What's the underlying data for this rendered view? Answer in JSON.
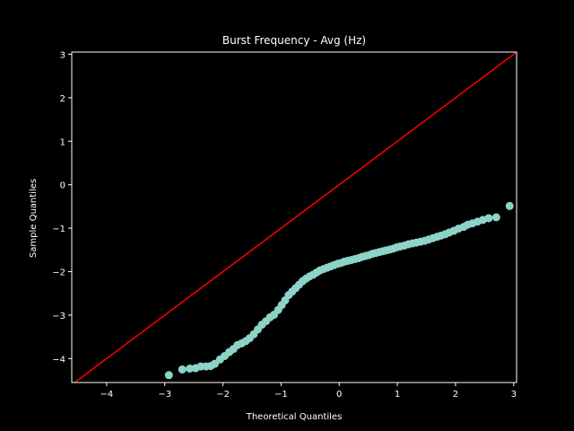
{
  "colors": {
    "background": "#000000",
    "foreground": "#ffffff",
    "points": "#8dd3c7",
    "reference_line": "#ff0000"
  },
  "chart_data": {
    "type": "scatter",
    "title": "Burst Frequency - Avg (Hz)",
    "xlabel": "Theoretical Quantiles",
    "ylabel": "Sample Quantiles",
    "xlim": [
      -4.6,
      3.05
    ],
    "ylim": [
      -4.55,
      3.05
    ],
    "xticks": [
      -4,
      -3,
      -2,
      -1,
      0,
      1,
      2,
      3
    ],
    "yticks": [
      -4,
      -3,
      -2,
      -1,
      0,
      1,
      2,
      3
    ],
    "grid": false,
    "reference_line": {
      "from": [
        -4.6,
        -4.6
      ],
      "to": [
        3.05,
        3.05
      ]
    },
    "series": [
      {
        "points": [
          [
            -2.93,
            -4.38
          ],
          [
            -2.7,
            -4.25
          ],
          [
            -2.57,
            -4.23
          ],
          [
            -2.47,
            -4.22
          ],
          [
            -2.38,
            -4.18
          ],
          [
            -2.29,
            -4.18
          ],
          [
            -2.21,
            -4.17
          ],
          [
            -2.14,
            -4.12
          ],
          [
            -2.05,
            -4.02
          ],
          [
            -1.97,
            -3.94
          ],
          [
            -1.89,
            -3.85
          ],
          [
            -1.82,
            -3.78
          ],
          [
            -1.75,
            -3.69
          ],
          [
            -1.68,
            -3.65
          ],
          [
            -1.61,
            -3.6
          ],
          [
            -1.54,
            -3.53
          ],
          [
            -1.47,
            -3.44
          ],
          [
            -1.4,
            -3.33
          ],
          [
            -1.33,
            -3.22
          ],
          [
            -1.26,
            -3.14
          ],
          [
            -1.19,
            -3.05
          ],
          [
            -1.12,
            -2.99
          ],
          [
            -1.05,
            -2.88
          ],
          [
            -0.99,
            -2.77
          ],
          [
            -0.93,
            -2.66
          ],
          [
            -0.87,
            -2.54
          ],
          [
            -0.81,
            -2.46
          ],
          [
            -0.75,
            -2.38
          ],
          [
            -0.69,
            -2.3
          ],
          [
            -0.63,
            -2.22
          ],
          [
            -0.57,
            -2.16
          ],
          [
            -0.51,
            -2.11
          ],
          [
            -0.45,
            -2.07
          ],
          [
            -0.39,
            -2.02
          ],
          [
            -0.33,
            -1.97
          ],
          [
            -0.27,
            -1.94
          ],
          [
            -0.21,
            -1.91
          ],
          [
            -0.15,
            -1.88
          ],
          [
            -0.09,
            -1.85
          ],
          [
            -0.03,
            -1.82
          ],
          [
            0.03,
            -1.8
          ],
          [
            0.09,
            -1.77
          ],
          [
            0.15,
            -1.75
          ],
          [
            0.21,
            -1.73
          ],
          [
            0.27,
            -1.71
          ],
          [
            0.33,
            -1.69
          ],
          [
            0.39,
            -1.66
          ],
          [
            0.45,
            -1.64
          ],
          [
            0.51,
            -1.62
          ],
          [
            0.57,
            -1.59
          ],
          [
            0.63,
            -1.57
          ],
          [
            0.69,
            -1.55
          ],
          [
            0.75,
            -1.53
          ],
          [
            0.81,
            -1.51
          ],
          [
            0.87,
            -1.49
          ],
          [
            0.93,
            -1.47
          ],
          [
            0.99,
            -1.44
          ],
          [
            1.05,
            -1.42
          ],
          [
            1.12,
            -1.4
          ],
          [
            1.19,
            -1.37
          ],
          [
            1.26,
            -1.35
          ],
          [
            1.33,
            -1.33
          ],
          [
            1.4,
            -1.31
          ],
          [
            1.47,
            -1.29
          ],
          [
            1.54,
            -1.26
          ],
          [
            1.61,
            -1.23
          ],
          [
            1.68,
            -1.2
          ],
          [
            1.75,
            -1.17
          ],
          [
            1.82,
            -1.14
          ],
          [
            1.89,
            -1.1
          ],
          [
            1.97,
            -1.06
          ],
          [
            2.05,
            -1.01
          ],
          [
            2.14,
            -0.97
          ],
          [
            2.21,
            -0.92
          ],
          [
            2.29,
            -0.89
          ],
          [
            2.38,
            -0.85
          ],
          [
            2.47,
            -0.81
          ],
          [
            2.57,
            -0.77
          ],
          [
            2.7,
            -0.75
          ],
          [
            2.93,
            -0.49
          ]
        ]
      }
    ]
  }
}
